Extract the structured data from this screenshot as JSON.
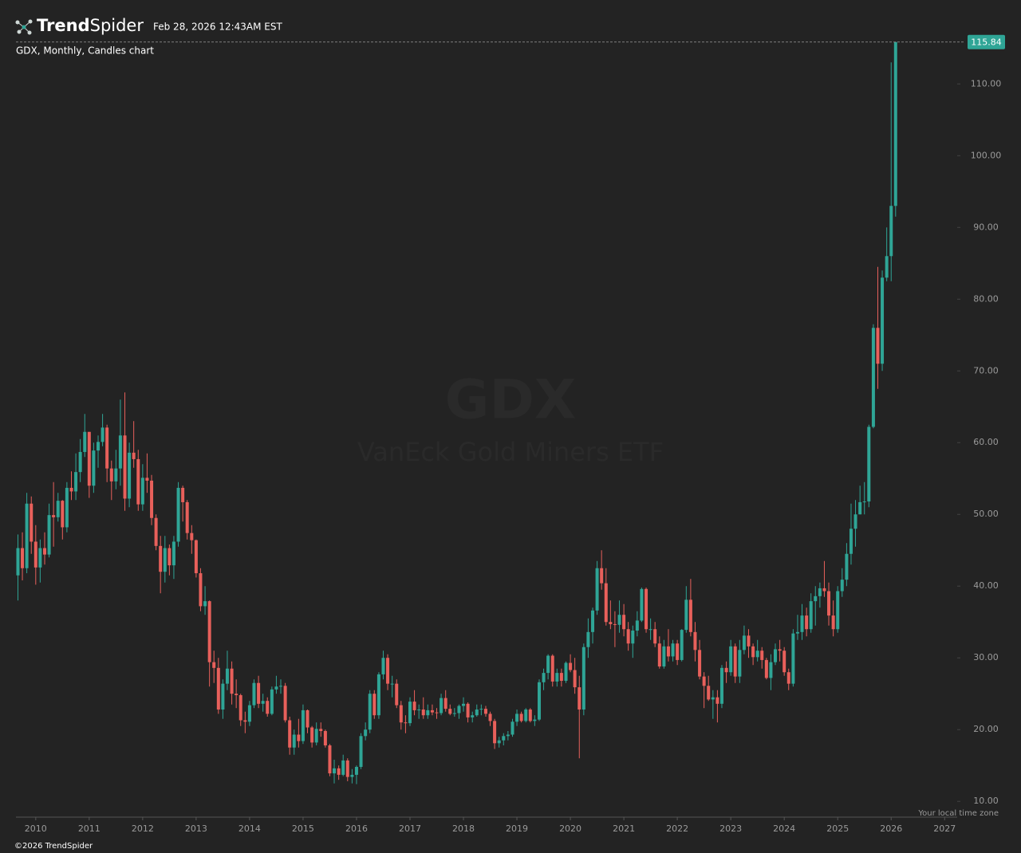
{
  "chart_data": {
    "type": "candlestick",
    "brand_bold": "Trend",
    "brand_light": "Spider",
    "timestamp": "Feb 28, 2026 12:43AM EST",
    "title": "GDX, Monthly, Candles chart",
    "watermark_symbol": "GDX",
    "watermark_name": "VanEck Gold Miners ETF",
    "timezone_note": "Your local time zone",
    "copyright": "©2026 TrendSpider",
    "up_color": "#2fa596",
    "down_color": "#e8605b",
    "xlim": [
      2009.63,
      2027.19
    ],
    "xticks": [
      2010,
      2011,
      2012,
      2013,
      2014,
      2015,
      2016,
      2017,
      2018,
      2019,
      2020,
      2021,
      2022,
      2023,
      2024,
      2025,
      2026,
      2027
    ],
    "ylim": [
      7.8,
      116.7
    ],
    "yticks": [
      {
        "value": 10,
        "label": "10.00"
      },
      {
        "value": 20,
        "label": "20.00"
      },
      {
        "value": 30,
        "label": "30.00"
      },
      {
        "value": 40,
        "label": "40.00"
      },
      {
        "value": 50,
        "label": "50.00"
      },
      {
        "value": 60,
        "label": "60.00"
      },
      {
        "value": 70,
        "label": "70.00"
      },
      {
        "value": 80,
        "label": "80.00"
      },
      {
        "value": 90,
        "label": "90.00"
      },
      {
        "value": 100,
        "label": "100.00"
      },
      {
        "value": 110,
        "label": "110.00"
      }
    ],
    "x": [
      2009.667,
      2009.75,
      2009.833,
      2009.917,
      2010,
      2010.083,
      2010.167,
      2010.25,
      2010.333,
      2010.417,
      2010.5,
      2010.583,
      2010.667,
      2010.75,
      2010.833,
      2010.917,
      2011,
      2011.083,
      2011.167,
      2011.25,
      2011.333,
      2011.417,
      2011.5,
      2011.583,
      2011.667,
      2011.75,
      2011.833,
      2011.917,
      2012,
      2012.083,
      2012.167,
      2012.25,
      2012.333,
      2012.417,
      2012.5,
      2012.583,
      2012.667,
      2012.75,
      2012.833,
      2012.917,
      2013,
      2013.083,
      2013.167,
      2013.25,
      2013.333,
      2013.417,
      2013.5,
      2013.583,
      2013.667,
      2013.75,
      2013.833,
      2013.917,
      2014,
      2014.083,
      2014.167,
      2014.25,
      2014.333,
      2014.417,
      2014.5,
      2014.583,
      2014.667,
      2014.75,
      2014.833,
      2014.917,
      2015,
      2015.083,
      2015.167,
      2015.25,
      2015.333,
      2015.417,
      2015.5,
      2015.583,
      2015.667,
      2015.75,
      2015.833,
      2015.917,
      2016,
      2016.083,
      2016.167,
      2016.25,
      2016.333,
      2016.417,
      2016.5,
      2016.583,
      2016.667,
      2016.75,
      2016.833,
      2016.917,
      2017,
      2017.083,
      2017.167,
      2017.25,
      2017.333,
      2017.417,
      2017.5,
      2017.583,
      2017.667,
      2017.75,
      2017.833,
      2017.917,
      2018,
      2018.083,
      2018.167,
      2018.25,
      2018.333,
      2018.417,
      2018.5,
      2018.583,
      2018.667,
      2018.75,
      2018.833,
      2018.917,
      2019,
      2019.083,
      2019.167,
      2019.25,
      2019.333,
      2019.417,
      2019.5,
      2019.583,
      2019.667,
      2019.75,
      2019.833,
      2019.917,
      2020,
      2020.083,
      2020.167,
      2020.25,
      2020.333,
      2020.417,
      2020.5,
      2020.583,
      2020.667,
      2020.75,
      2020.833,
      2020.917,
      2021,
      2021.083,
      2021.167,
      2021.25,
      2021.333,
      2021.417,
      2021.5,
      2021.583,
      2021.667,
      2021.75,
      2021.833,
      2021.917,
      2022,
      2022.083,
      2022.167,
      2022.25,
      2022.333,
      2022.417,
      2022.5,
      2022.583,
      2022.667,
      2022.75,
      2022.833,
      2022.917,
      2023,
      2023.083,
      2023.167,
      2023.25,
      2023.333,
      2023.417,
      2023.5,
      2023.583,
      2023.667,
      2023.75,
      2023.833,
      2023.917,
      2024,
      2024.083,
      2024.167,
      2024.25,
      2024.333,
      2024.417,
      2024.5,
      2024.583,
      2024.667,
      2024.75,
      2024.833,
      2024.917,
      2025,
      2025.083,
      2025.167,
      2025.25,
      2025.333,
      2025.417,
      2025.5,
      2025.583,
      2025.667,
      2025.75,
      2025.833,
      2025.917,
      2026,
      2026.083
    ],
    "open": [
      41.5,
      45.3,
      42.5,
      51.5,
      46.2,
      42.6,
      45.3,
      44.4,
      49.9,
      49.6,
      51.9,
      48.2,
      53.7,
      53.2,
      55.9,
      58.7,
      61.5,
      54.0,
      58.9,
      60.1,
      62.1,
      56.4,
      54.6,
      56.4,
      61.0,
      52.2,
      58.6,
      57.7,
      51.4,
      55.1,
      54.7,
      49.5,
      45.6,
      42.0,
      45.3,
      42.9,
      46.2,
      53.7,
      51.7,
      47.4,
      46.4,
      41.8,
      37.2,
      37.9,
      29.4,
      28.6,
      22.8,
      26.4,
      28.5,
      25.0,
      24.8,
      21.3,
      21.1,
      23.4,
      26.5,
      23.6,
      24.0,
      22.2,
      25.6,
      26.0,
      26.1,
      21.3,
      17.5,
      19.3,
      18.4,
      22.7,
      20.3,
      18.2,
      20.1,
      19.8,
      17.8,
      13.9,
      14.6,
      13.7,
      15.7,
      13.4,
      13.7,
      14.8,
      19.1,
      20.0,
      25.0,
      22.0,
      27.7,
      30.0,
      26.4,
      26.4,
      23.4,
      21.0,
      20.9,
      23.9,
      22.7,
      22.8,
      22.0,
      22.7,
      22.4,
      22.3,
      24.4,
      22.9,
      22.2,
      22.3,
      23.3,
      23.6,
      21.7,
      22.0,
      22.8,
      22.9,
      22.2,
      21.2,
      18.1,
      18.5,
      19.1,
      19.3,
      21.1,
      22.2,
      21.2,
      22.8,
      21.2,
      21.4,
      26.6,
      27.9,
      30.3,
      26.7,
      27.9,
      26.8,
      29.3,
      28.3,
      25.9,
      22.8,
      31.5,
      33.6,
      36.6,
      42.5,
      40.4,
      35.0,
      34.7,
      34.6,
      36.0,
      34.0,
      32.0,
      33.8,
      35.2,
      39.6,
      34.0,
      34.0,
      32.0,
      28.8,
      31.6,
      30.2,
      32.0,
      29.7,
      33.9,
      38.1,
      33.6,
      31.1,
      27.4,
      26.1,
      24.2,
      24.5,
      23.6,
      28.6,
      28.0,
      31.6,
      27.4,
      31.1,
      33.1,
      31.6,
      30.1,
      31.0,
      29.7,
      27.2,
      29.4,
      31.2,
      31.0,
      28.0,
      26.4,
      33.4,
      33.6,
      35.9,
      34.0,
      37.9,
      38.6,
      39.7,
      39.3,
      35.9,
      34.0,
      39.3,
      40.9,
      44.5,
      48.0,
      50.0,
      51.7,
      51.8,
      62.2,
      76.0,
      71.0,
      83.0,
      86.0,
      93.0
    ],
    "high": [
      47.2,
      47.5,
      53.0,
      52.5,
      48.5,
      46.5,
      47.5,
      51.5,
      54.5,
      53.0,
      52.0,
      54.5,
      56.0,
      58.5,
      60.5,
      64.0,
      61.5,
      60.0,
      61.0,
      64.0,
      62.5,
      57.5,
      59.0,
      66.0,
      67.0,
      60.0,
      63.0,
      59.0,
      57.0,
      58.5,
      55.5,
      50.0,
      47.0,
      47.0,
      45.8,
      47.0,
      54.5,
      54.0,
      52.0,
      48.5,
      46.5,
      42.5,
      40.0,
      38.0,
      31.0,
      30.0,
      27.0,
      31.0,
      29.5,
      27.0,
      25.0,
      22.5,
      24.0,
      27.0,
      27.5,
      25.0,
      24.5,
      26.0,
      27.5,
      27.0,
      26.5,
      21.8,
      20.0,
      21.5,
      23.5,
      22.8,
      20.5,
      21.0,
      21.0,
      20.0,
      18.0,
      15.8,
      15.0,
      16.5,
      16.0,
      14.5,
      15.0,
      19.5,
      21.0,
      25.5,
      25.5,
      28.0,
      31.0,
      30.5,
      27.5,
      27.0,
      24.0,
      22.0,
      24.5,
      25.5,
      23.5,
      24.5,
      23.5,
      23.5,
      23.0,
      25.0,
      25.5,
      23.5,
      23.0,
      23.5,
      24.5,
      23.8,
      22.5,
      23.5,
      23.5,
      23.3,
      22.5,
      21.5,
      19.0,
      19.5,
      19.8,
      21.5,
      22.8,
      22.5,
      23.0,
      23.0,
      22.0,
      27.0,
      28.5,
      30.5,
      30.5,
      28.5,
      28.5,
      29.5,
      30.5,
      30.0,
      27.5,
      32.0,
      35.5,
      37.0,
      43.5,
      45.0,
      42.5,
      38.0,
      36.5,
      38.0,
      37.5,
      35.0,
      34.5,
      36.5,
      39.8,
      39.8,
      35.5,
      35.0,
      33.0,
      32.5,
      34.0,
      32.5,
      32.5,
      34.0,
      40.0,
      41.0,
      35.0,
      32.5,
      28.0,
      27.5,
      25.5,
      25.5,
      29.0,
      29.5,
      32.5,
      32.0,
      32.5,
      34.5,
      34.0,
      32.0,
      32.5,
      31.5,
      30.0,
      30.5,
      32.0,
      32.5,
      31.5,
      28.5,
      34.0,
      36.0,
      37.5,
      37.0,
      39.0,
      40.0,
      40.5,
      43.5,
      40.5,
      38.0,
      40.0,
      42.5,
      46.0,
      51.5,
      52.0,
      54.0,
      54.5,
      62.5,
      76.5,
      84.5,
      84.0,
      90.0,
      113.0,
      115.84
    ],
    "low": [
      38.0,
      40.8,
      41.8,
      44.5,
      40.2,
      40.5,
      43.0,
      44.0,
      45.5,
      49.0,
      46.5,
      47.5,
      52.0,
      52.0,
      54.5,
      58.0,
      52.3,
      53.0,
      56.5,
      59.5,
      54.5,
      52.0,
      53.5,
      54.0,
      50.5,
      51.0,
      56.5,
      50.5,
      50.5,
      53.0,
      48.5,
      45.0,
      39.0,
      40.5,
      41.5,
      41.0,
      45.5,
      49.0,
      46.5,
      44.5,
      41.2,
      36.5,
      36.0,
      26.0,
      26.5,
      22.2,
      21.5,
      25.5,
      23.5,
      23.0,
      20.5,
      19.5,
      20.5,
      23.0,
      23.0,
      22.5,
      21.8,
      22.0,
      25.0,
      25.0,
      21.0,
      16.5,
      16.5,
      17.5,
      18.0,
      19.5,
      17.5,
      17.8,
      19.0,
      17.5,
      13.5,
      12.5,
      13.0,
      13.5,
      12.8,
      12.5,
      12.4,
      14.5,
      18.5,
      19.5,
      21.5,
      21.5,
      27.0,
      25.5,
      24.5,
      23.0,
      20.0,
      19.5,
      20.5,
      22.0,
      21.5,
      21.5,
      21.5,
      22.0,
      21.5,
      22.0,
      22.5,
      22.0,
      21.8,
      21.5,
      22.5,
      21.0,
      21.0,
      21.8,
      22.0,
      21.8,
      20.5,
      17.3,
      17.5,
      17.8,
      18.5,
      19.0,
      20.5,
      21.0,
      21.0,
      21.0,
      20.5,
      21.2,
      25.5,
      27.0,
      26.0,
      26.0,
      26.0,
      26.5,
      28.0,
      25.0,
      16.0,
      22.0,
      30.0,
      32.0,
      36.0,
      39.5,
      34.5,
      34.0,
      31.5,
      33.5,
      33.0,
      31.0,
      30.0,
      33.0,
      35.0,
      33.5,
      32.5,
      31.5,
      28.5,
      28.5,
      29.5,
      29.5,
      29.0,
      29.5,
      33.5,
      33.0,
      29.5,
      27.0,
      23.0,
      24.0,
      21.5,
      21.0,
      23.0,
      26.5,
      27.5,
      26.5,
      26.5,
      30.5,
      30.0,
      29.0,
      29.5,
      28.5,
      27.0,
      25.5,
      29.0,
      29.5,
      27.5,
      25.5,
      26.0,
      32.5,
      32.5,
      33.0,
      33.5,
      34.5,
      37.0,
      38.5,
      34.5,
      33.0,
      33.5,
      38.5,
      40.0,
      43.0,
      45.5,
      50.0,
      50.0,
      51.0,
      62.0,
      67.5,
      70.0,
      82.5,
      82.5,
      91.5
    ],
    "close": [
      45.3,
      42.5,
      51.5,
      46.2,
      42.6,
      45.3,
      44.4,
      49.9,
      49.6,
      51.9,
      48.2,
      53.7,
      53.2,
      55.9,
      58.7,
      61.5,
      54.0,
      58.9,
      60.1,
      62.1,
      56.4,
      54.6,
      56.4,
      61.0,
      52.2,
      58.6,
      57.7,
      51.4,
      55.1,
      54.7,
      49.5,
      45.6,
      42.0,
      45.3,
      42.9,
      46.2,
      53.7,
      51.7,
      47.4,
      46.4,
      41.8,
      37.2,
      37.9,
      29.4,
      28.6,
      22.8,
      26.4,
      28.5,
      25.0,
      24.8,
      21.3,
      21.1,
      23.4,
      26.5,
      23.6,
      24.0,
      22.2,
      25.6,
      26.0,
      26.1,
      21.3,
      17.5,
      19.3,
      18.4,
      22.7,
      20.3,
      18.2,
      20.1,
      19.8,
      17.8,
      13.9,
      14.6,
      13.7,
      15.7,
      13.4,
      13.7,
      14.8,
      19.1,
      20.0,
      25.0,
      22.0,
      27.7,
      30.0,
      26.4,
      26.4,
      23.4,
      21.0,
      20.9,
      23.9,
      22.7,
      22.8,
      22.0,
      22.7,
      22.4,
      22.3,
      24.4,
      22.9,
      22.2,
      22.3,
      23.3,
      23.6,
      21.7,
      22.0,
      22.8,
      22.9,
      22.2,
      21.2,
      18.1,
      18.5,
      19.1,
      19.3,
      21.1,
      22.2,
      21.2,
      22.8,
      21.2,
      21.4,
      26.6,
      27.9,
      30.3,
      26.7,
      27.9,
      26.8,
      29.3,
      28.3,
      25.9,
      22.8,
      31.5,
      33.6,
      36.6,
      42.5,
      40.4,
      35.0,
      34.7,
      34.6,
      36.0,
      34.0,
      32.0,
      33.8,
      35.2,
      39.6,
      34.0,
      34.0,
      32.0,
      28.8,
      31.6,
      30.2,
      32.0,
      29.7,
      33.9,
      38.1,
      33.6,
      31.1,
      27.4,
      26.1,
      24.2,
      24.5,
      23.6,
      28.6,
      28.0,
      31.6,
      27.4,
      31.1,
      33.1,
      31.6,
      30.1,
      31.0,
      29.7,
      27.2,
      29.4,
      31.2,
      31.0,
      28.0,
      26.4,
      33.4,
      33.6,
      35.9,
      34.0,
      37.9,
      38.6,
      39.7,
      39.3,
      35.9,
      34.0,
      39.3,
      40.9,
      44.5,
      48.0,
      50.0,
      51.7,
      51.8,
      62.2,
      76.0,
      71.0,
      83.0,
      86.0,
      93.0,
      115.84
    ]
  }
}
